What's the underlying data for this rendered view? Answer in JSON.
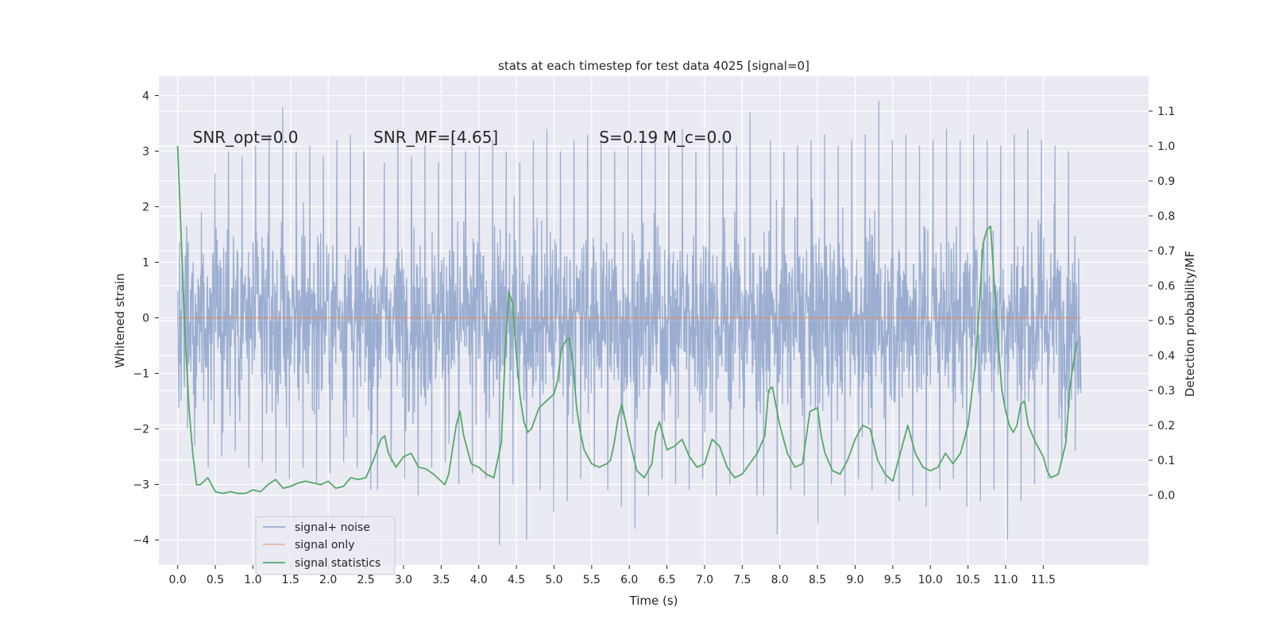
{
  "chart_data": {
    "type": "line",
    "title": "stats at each timestep for test data 4025 [signal=0]",
    "xlabel": "Time (s)",
    "ylabel": "Whitened strain",
    "y2label": "Detection probability/MF",
    "xlim": [
      -0.25,
      12.9
    ],
    "ylim": [
      -4.45,
      4.35
    ],
    "y2lim": [
      -0.2,
      1.2
    ],
    "xticks": [
      0.0,
      0.5,
      1.0,
      1.5,
      2.0,
      2.5,
      3.0,
      3.5,
      4.0,
      4.5,
      5.0,
      5.5,
      6.0,
      6.5,
      7.0,
      7.5,
      8.0,
      8.5,
      9.0,
      9.5,
      10.0,
      10.5,
      11.0,
      11.5
    ],
    "xtick_labels": [
      "0.0",
      "0.5",
      "1.0",
      "1.5",
      "2.0",
      "2.5",
      "3.0",
      "3.5",
      "4.0",
      "4.5",
      "5.0",
      "5.5",
      "6.0",
      "6.5",
      "7.0",
      "7.5",
      "8.0",
      "8.5",
      "9.0",
      "9.5",
      "10.0",
      "10.5",
      "11.0",
      "11.5"
    ],
    "yticks": [
      -4,
      -3,
      -2,
      -1,
      0,
      1,
      2,
      3,
      4
    ],
    "ytick_labels": [
      "−4",
      "−3",
      "−2",
      "−1",
      "0",
      "1",
      "2",
      "3",
      "4"
    ],
    "y2ticks": [
      0.0,
      0.1,
      0.2,
      0.3,
      0.4,
      0.5,
      0.6,
      0.7,
      0.8,
      0.9,
      1.0,
      1.1
    ],
    "y2tick_labels": [
      "0.0",
      "0.1",
      "0.2",
      "0.3",
      "0.4",
      "0.5",
      "0.6",
      "0.7",
      "0.8",
      "0.9",
      "1.0",
      "1.1"
    ],
    "grid": true,
    "legend_position": "lower-left",
    "annotations": [
      {
        "text": "SNR_opt=0.0",
        "x": 0.2,
        "y": 3.15
      },
      {
        "text": "SNR_MF=[4.65]",
        "x": 2.6,
        "y": 3.15
      },
      {
        "text": "S=0.19   M_c=0.0",
        "x": 5.6,
        "y": 3.15
      }
    ],
    "series": [
      {
        "name": "signal+ noise",
        "color": "#4c72b0",
        "axis": "left",
        "time_range": [
          0.0,
          12.0
        ],
        "envelope_values": [
          -1.5,
          1.2,
          -2.3,
          1.9,
          -2.7,
          2.6,
          -2.5,
          3.0,
          -2.4,
          2.9,
          -2.7,
          3.1,
          -2.6,
          3.3,
          -2.8,
          3.8,
          -2.9,
          3.0,
          -2.7,
          3.1,
          -3.0,
          2.9,
          -2.8,
          3.2,
          -2.6,
          3.3,
          -2.7,
          3.0,
          -3.1,
          2.8,
          -2.6,
          3.4,
          -2.9,
          2.9,
          -3.2,
          3.1,
          -2.7,
          2.8,
          -2.6,
          3.3,
          -3.0,
          3.0,
          -2.8,
          3.1,
          -2.9,
          3.2,
          -4.1,
          3.0,
          -3.0,
          2.8,
          -4.0,
          3.2,
          -3.1,
          3.4,
          -3.5,
          3.0,
          -3.3,
          3.2,
          -2.9,
          3.3,
          -2.7,
          3.2,
          -3.1,
          3.0,
          -3.4,
          3.1,
          -3.8,
          3.2,
          -3.2,
          3.3,
          -2.9,
          3.1,
          -3.0,
          3.4,
          -3.1,
          3.0,
          -2.9,
          3.2,
          -3.2,
          3.3,
          -3.0,
          3.1,
          -2.8,
          3.7,
          -3.2,
          3.2,
          -3.9,
          3.0,
          -3.1,
          3.1,
          -3.2,
          3.2,
          -3.7,
          3.3,
          -3.0,
          3.1,
          -3.2,
          3.2,
          -2.9,
          3.3,
          -3.1,
          3.9,
          -3.0,
          3.2,
          -3.3,
          3.3,
          -3.2,
          3.1,
          -3.4,
          3.2,
          -3.1,
          3.4,
          -2.9,
          3.2,
          -3.4,
          3.3,
          -3.3,
          3.2,
          -3.1,
          3.1,
          -4.0,
          3.3,
          -3.3,
          3.4,
          -3.0,
          3.2,
          -2.9,
          3.1,
          -2.6,
          3.0,
          -2.4,
          2.7
        ]
      },
      {
        "name": "signal only",
        "color": "#dd8452",
        "axis": "left",
        "x": [
          0.0,
          12.0
        ],
        "y": [
          0.0,
          0.0
        ]
      },
      {
        "name": "signal statistics",
        "color": "#55a868",
        "axis": "right",
        "x": [
          0.0,
          0.05,
          0.1,
          0.15,
          0.2,
          0.25,
          0.3,
          0.4,
          0.5,
          0.6,
          0.7,
          0.8,
          0.9,
          1.0,
          1.1,
          1.2,
          1.3,
          1.4,
          1.5,
          1.6,
          1.7,
          1.8,
          1.9,
          2.0,
          2.1,
          2.2,
          2.3,
          2.4,
          2.5,
          2.6,
          2.7,
          2.75,
          2.8,
          2.9,
          3.0,
          3.1,
          3.2,
          3.3,
          3.4,
          3.5,
          3.55,
          3.6,
          3.7,
          3.75,
          3.8,
          3.9,
          4.0,
          4.1,
          4.2,
          4.3,
          4.35,
          4.4,
          4.45,
          4.5,
          4.55,
          4.6,
          4.65,
          4.7,
          4.8,
          4.9,
          5.0,
          5.05,
          5.1,
          5.15,
          5.2,
          5.25,
          5.3,
          5.35,
          5.4,
          5.5,
          5.6,
          5.7,
          5.75,
          5.8,
          5.85,
          5.9,
          6.0,
          6.1,
          6.2,
          6.3,
          6.35,
          6.4,
          6.5,
          6.6,
          6.7,
          6.8,
          6.9,
          7.0,
          7.1,
          7.2,
          7.3,
          7.4,
          7.5,
          7.6,
          7.7,
          7.8,
          7.85,
          7.9,
          8.0,
          8.1,
          8.2,
          8.3,
          8.4,
          8.5,
          8.55,
          8.6,
          8.7,
          8.8,
          8.9,
          9.0,
          9.1,
          9.2,
          9.3,
          9.4,
          9.5,
          9.6,
          9.7,
          9.8,
          9.9,
          10.0,
          10.1,
          10.2,
          10.3,
          10.4,
          10.5,
          10.6,
          10.65,
          10.7,
          10.75,
          10.8,
          10.85,
          10.9,
          10.95,
          11.0,
          11.05,
          11.1,
          11.15,
          11.2,
          11.25,
          11.3,
          11.4,
          11.5,
          11.55,
          11.6,
          11.7,
          11.8,
          11.85,
          11.9,
          11.95
        ],
        "y": [
          1.0,
          0.72,
          0.45,
          0.25,
          0.12,
          0.03,
          0.03,
          0.05,
          0.01,
          0.005,
          0.01,
          0.005,
          0.005,
          0.015,
          0.01,
          0.03,
          0.045,
          0.02,
          0.025,
          0.035,
          0.04,
          0.035,
          0.03,
          0.04,
          0.02,
          0.025,
          0.05,
          0.045,
          0.05,
          0.1,
          0.16,
          0.17,
          0.12,
          0.08,
          0.11,
          0.12,
          0.08,
          0.075,
          0.06,
          0.04,
          0.03,
          0.06,
          0.2,
          0.24,
          0.17,
          0.09,
          0.08,
          0.06,
          0.05,
          0.15,
          0.4,
          0.58,
          0.55,
          0.4,
          0.28,
          0.21,
          0.18,
          0.19,
          0.25,
          0.27,
          0.29,
          0.33,
          0.42,
          0.44,
          0.45,
          0.38,
          0.25,
          0.18,
          0.13,
          0.09,
          0.08,
          0.09,
          0.1,
          0.15,
          0.22,
          0.26,
          0.16,
          0.07,
          0.05,
          0.09,
          0.18,
          0.21,
          0.13,
          0.14,
          0.16,
          0.11,
          0.08,
          0.09,
          0.16,
          0.14,
          0.08,
          0.05,
          0.06,
          0.09,
          0.12,
          0.17,
          0.3,
          0.31,
          0.2,
          0.12,
          0.08,
          0.09,
          0.24,
          0.25,
          0.17,
          0.12,
          0.07,
          0.06,
          0.1,
          0.16,
          0.2,
          0.19,
          0.1,
          0.06,
          0.04,
          0.12,
          0.2,
          0.12,
          0.08,
          0.07,
          0.08,
          0.12,
          0.09,
          0.12,
          0.2,
          0.38,
          0.54,
          0.72,
          0.76,
          0.77,
          0.6,
          0.44,
          0.3,
          0.24,
          0.2,
          0.18,
          0.2,
          0.26,
          0.27,
          0.2,
          0.15,
          0.11,
          0.07,
          0.05,
          0.06,
          0.15,
          0.3,
          0.38,
          0.44
        ]
      }
    ]
  }
}
